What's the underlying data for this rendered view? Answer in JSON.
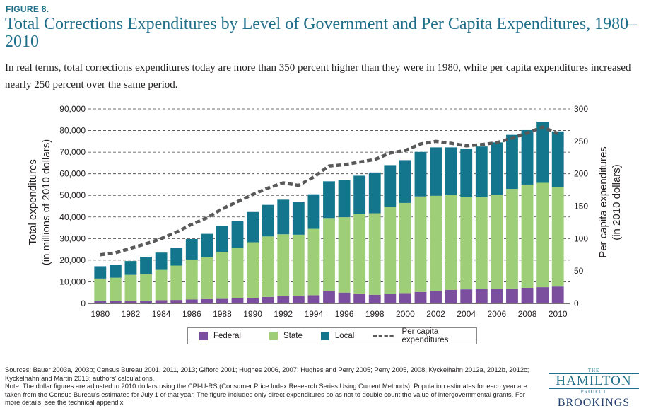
{
  "figure_label": "FIGURE 8.",
  "title": "Total Corrections Expenditures by Level of Government and Per Capita Expenditures, 1980–2010",
  "subtitle": "In real terms, total corrections expenditures today are more than 350 percent higher than they were in 1980, while per capita expenditures increased nearly 250 percent over the same period.",
  "colors": {
    "federal": "#7b4f9d",
    "state": "#9fce79",
    "local": "#13768c",
    "per_capita": "#595959",
    "title": "#1f6f8b"
  },
  "chart_data": {
    "type": "bar",
    "stacked": true,
    "x": [
      1980,
      1981,
      1982,
      1983,
      1984,
      1985,
      1986,
      1987,
      1988,
      1989,
      1990,
      1991,
      1992,
      1993,
      1994,
      1995,
      1996,
      1997,
      1998,
      1999,
      2000,
      2001,
      2002,
      2003,
      2004,
      2005,
      2006,
      2007,
      2008,
      2009,
      2010
    ],
    "series": [
      {
        "name": "Federal",
        "values": [
          1000,
          1100,
          1200,
          1300,
          1500,
          1600,
          1800,
          2000,
          2100,
          2300,
          2600,
          3000,
          3500,
          3500,
          3800,
          5800,
          5000,
          4600,
          4000,
          4500,
          4800,
          5300,
          5800,
          6300,
          6500,
          6700,
          6800,
          6900,
          7200,
          7500,
          7800
        ]
      },
      {
        "name": "State",
        "values": [
          10500,
          10800,
          12000,
          12400,
          14000,
          15900,
          18500,
          19400,
          21700,
          23300,
          25700,
          28000,
          28500,
          28300,
          30700,
          33700,
          34900,
          36700,
          37700,
          40200,
          41700,
          44200,
          44000,
          43900,
          42600,
          42500,
          43500,
          46100,
          47800,
          48300,
          46200
        ]
      },
      {
        "name": "Local",
        "values": [
          5700,
          6100,
          6400,
          7900,
          8000,
          8300,
          9500,
          10800,
          12000,
          12400,
          14000,
          14600,
          16000,
          15300,
          16000,
          17000,
          17200,
          17800,
          18900,
          19300,
          19800,
          20600,
          22400,
          22000,
          22500,
          23400,
          24200,
          25000,
          25200,
          28300,
          25600
        ]
      }
    ],
    "per_capita": {
      "name": "Per capita expenditures",
      "values": [
        75,
        78,
        85,
        92,
        100,
        110,
        122,
        132,
        146,
        157,
        168,
        178,
        186,
        182,
        195,
        212,
        214,
        218,
        222,
        232,
        236,
        246,
        250,
        247,
        243,
        245,
        248,
        255,
        263,
        272,
        262
      ]
    },
    "xticks": [
      "1980",
      "1982",
      "1984",
      "1986",
      "1988",
      "1990",
      "1992",
      "1994",
      "1996",
      "1998",
      "2000",
      "2002",
      "2004",
      "2006",
      "2008",
      "2010"
    ],
    "yticks_left": [
      "0",
      "10,000",
      "20,000",
      "30,000",
      "40,000",
      "50,000",
      "60,000",
      "70,000",
      "80,000",
      "90,000"
    ],
    "yticks_right": [
      "0",
      "50",
      "100",
      "150",
      "200",
      "250",
      "300"
    ],
    "ylim_left": [
      0,
      90000
    ],
    "ylim_right": [
      0,
      300
    ],
    "ylabel_left_1": "Total expenditures",
    "ylabel_left_2": "(in millions of 2010 dollars)",
    "ylabel_right_1": "Per capita expenditures",
    "ylabel_right_2": "(in 2010 dollars)",
    "grid": true,
    "legend_position": "bottom"
  },
  "legend": {
    "federal": "Federal",
    "state": "State",
    "local": "Local",
    "per_capita": "Per capita expenditures"
  },
  "sources_text": "Sources: Bauer 2003a, 2003b; Census Bureau 2001, 2011, 2013; Gifford 2001; Hughes 2006, 2007; Hughes and Perry 2005; Perry 2005, 2008; Kyckelhahn 2012a, 2012b, 2012c; Kyckelhahn and Martin 2013; authors' calculations.",
  "note_text": "Note: The dollar figures are adjusted to 2010 dollars using the CPI-U-RS (Consumer Price Index Research Series Using Current Methods). Population estimates for each year are taken from the Census Bureau's estimates for July 1 of that year. The figure includes only direct expenditures so as not to double count the value of intergovernmental grants. For more details, see the technical appendix.",
  "logo": {
    "the": "THE",
    "hamilton": "HAMILTON",
    "project": "PROJECT",
    "brookings": "BROOKINGS"
  }
}
